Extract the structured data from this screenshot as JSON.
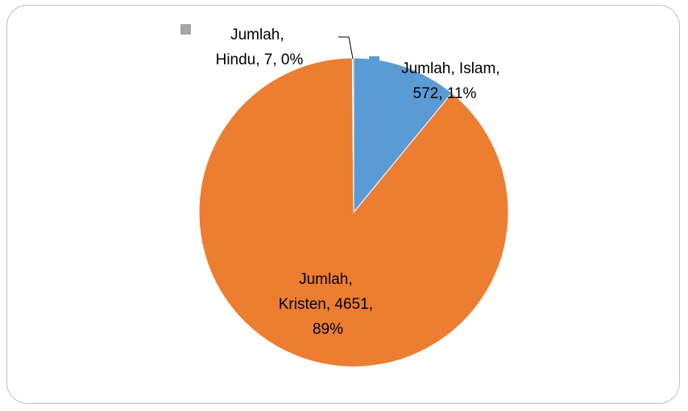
{
  "chart_data": {
    "type": "pie",
    "series": [
      {
        "name": "Jumlah",
        "slices": [
          {
            "category": "Islam",
            "value": 572,
            "percent": "11%",
            "color": "#5b9bd5"
          },
          {
            "category": "Kristen",
            "value": 4651,
            "percent": "89%",
            "color": "#ed7d31"
          },
          {
            "category": "Hindu",
            "value": 7,
            "percent": "0%",
            "color": "#a5a5a5"
          }
        ]
      }
    ],
    "data_labels": [
      {
        "lines": [
          "Jumlah, Islam,",
          "572, 11%"
        ]
      },
      {
        "lines": [
          "Jumlah,",
          "Kristen, 4651,",
          "89%"
        ]
      },
      {
        "lines": [
          "Jumlah,",
          "Hindu, 7, 0%"
        ]
      }
    ],
    "start_angle": "12 o'clock",
    "direction": "clockwise"
  }
}
